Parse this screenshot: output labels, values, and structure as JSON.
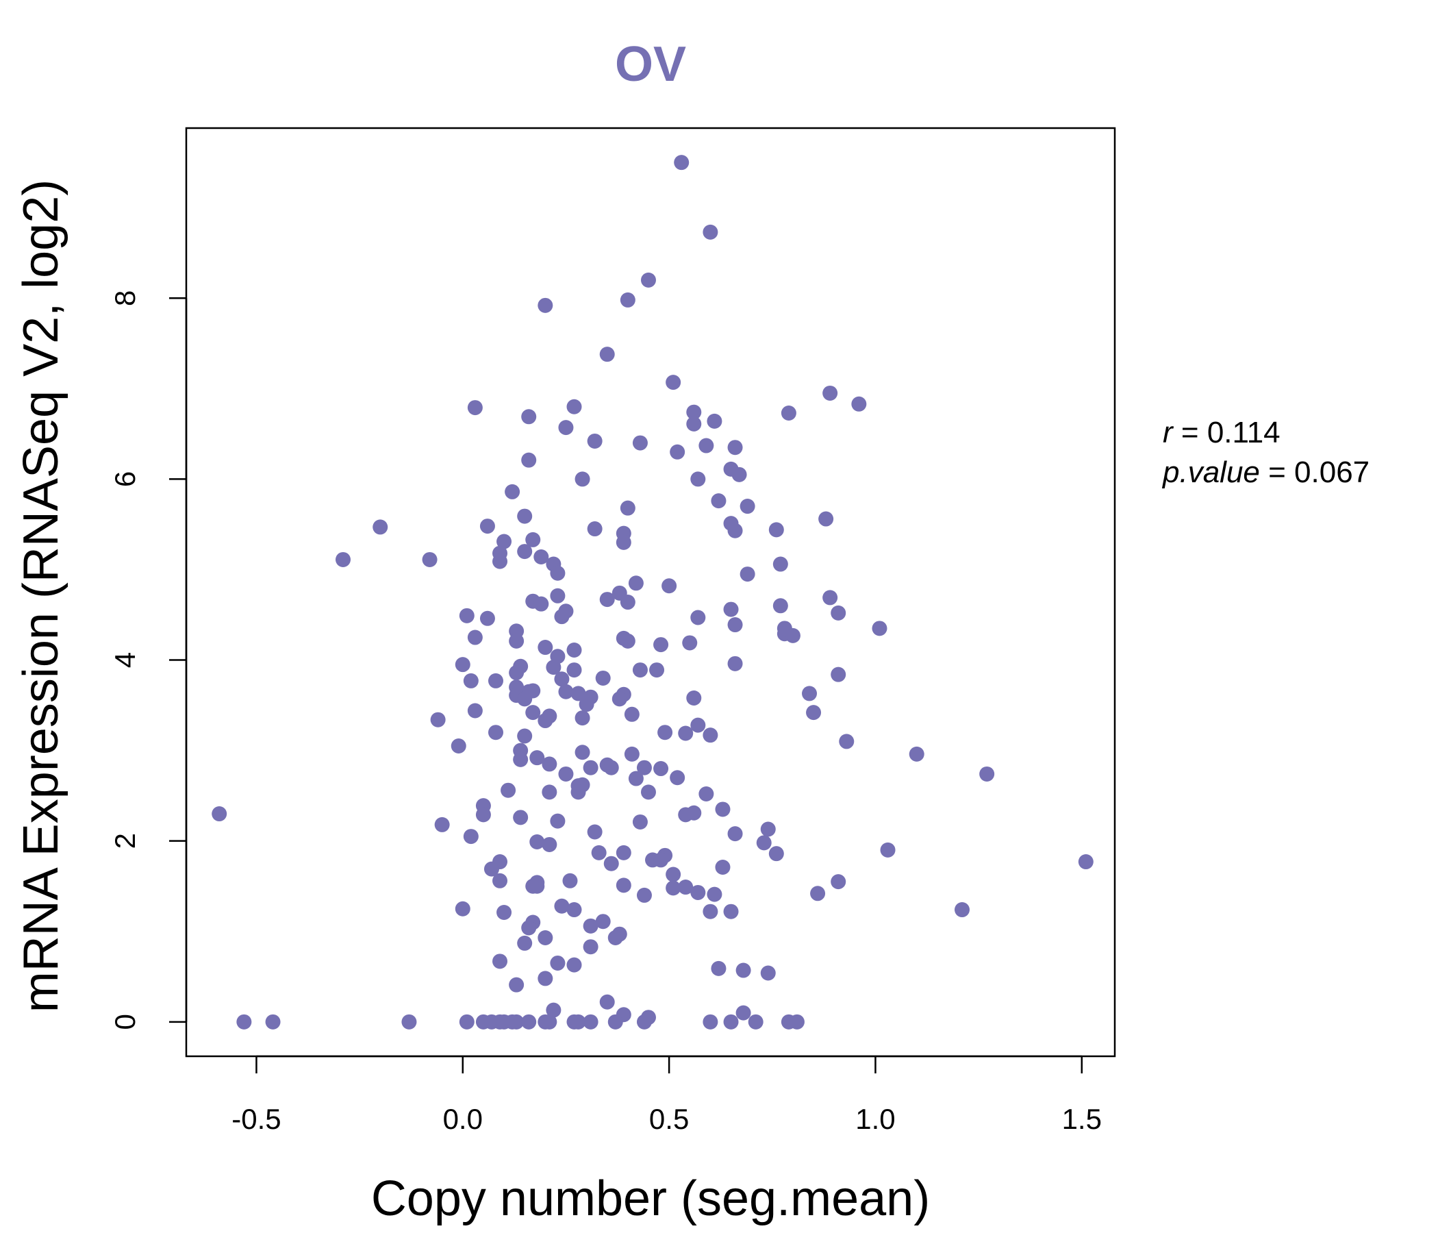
{
  "chart_data": {
    "type": "scatter",
    "title": "OV",
    "xlabel": "Copy number (seg.mean)",
    "ylabel": "mRNA Expression (RNASeq V2, log2)",
    "xlim": [
      -0.67,
      1.58
    ],
    "ylim": [
      -0.38,
      9.88
    ],
    "x_ticks": [
      -0.5,
      0.0,
      0.5,
      1.0,
      1.5
    ],
    "x_tick_labels": [
      "-0.5",
      "0.0",
      "0.5",
      "1.0",
      "1.5"
    ],
    "y_ticks": [
      0,
      2,
      4,
      6,
      8
    ],
    "y_tick_labels": [
      "0",
      "2",
      "4",
      "6",
      "8"
    ],
    "grid": false,
    "colors": {
      "points": "#7570b3",
      "title": "#7570b3",
      "axes": "#000000"
    },
    "annotation": {
      "r_label": "r",
      "r_value": "0.114",
      "p_label": "p.value",
      "p_value": "0.067"
    },
    "points": [
      {
        "x": 0.53,
        "y": 9.5
      },
      {
        "x": 0.6,
        "y": 8.73
      },
      {
        "x": 0.45,
        "y": 8.2
      },
      {
        "x": 0.2,
        "y": 7.92
      },
      {
        "x": 0.4,
        "y": 7.98
      },
      {
        "x": 0.35,
        "y": 7.38
      },
      {
        "x": 0.51,
        "y": 7.07
      },
      {
        "x": 0.89,
        "y": 6.95
      },
      {
        "x": 0.96,
        "y": 6.83
      },
      {
        "x": 0.03,
        "y": 6.79
      },
      {
        "x": 0.27,
        "y": 6.8
      },
      {
        "x": 0.56,
        "y": 6.74
      },
      {
        "x": 0.79,
        "y": 6.73
      },
      {
        "x": 0.16,
        "y": 6.69
      },
      {
        "x": 0.61,
        "y": 6.64
      },
      {
        "x": 0.56,
        "y": 6.61
      },
      {
        "x": 0.25,
        "y": 6.57
      },
      {
        "x": 0.32,
        "y": 6.42
      },
      {
        "x": 0.43,
        "y": 6.4
      },
      {
        "x": 0.59,
        "y": 6.37
      },
      {
        "x": 0.66,
        "y": 6.35
      },
      {
        "x": 0.52,
        "y": 6.3
      },
      {
        "x": 0.16,
        "y": 6.21
      },
      {
        "x": 0.65,
        "y": 6.11
      },
      {
        "x": 0.67,
        "y": 6.05
      },
      {
        "x": 0.29,
        "y": 6.0
      },
      {
        "x": 0.57,
        "y": 6.0
      },
      {
        "x": 0.12,
        "y": 5.86
      },
      {
        "x": 0.62,
        "y": 5.76
      },
      {
        "x": 0.69,
        "y": 5.7
      },
      {
        "x": 0.4,
        "y": 5.68
      },
      {
        "x": 0.15,
        "y": 5.59
      },
      {
        "x": 0.88,
        "y": 5.56
      },
      {
        "x": 0.65,
        "y": 5.51
      },
      {
        "x": -0.2,
        "y": 5.47
      },
      {
        "x": 0.06,
        "y": 5.48
      },
      {
        "x": 0.32,
        "y": 5.45
      },
      {
        "x": 0.76,
        "y": 5.44
      },
      {
        "x": 0.66,
        "y": 5.43
      },
      {
        "x": 0.39,
        "y": 5.4
      },
      {
        "x": 0.17,
        "y": 5.33
      },
      {
        "x": 0.1,
        "y": 5.31
      },
      {
        "x": 0.39,
        "y": 5.3
      },
      {
        "x": 0.15,
        "y": 5.2
      },
      {
        "x": 0.09,
        "y": 5.18
      },
      {
        "x": 0.19,
        "y": 5.14
      },
      {
        "x": -0.29,
        "y": 5.11
      },
      {
        "x": -0.08,
        "y": 5.11
      },
      {
        "x": 0.09,
        "y": 5.09
      },
      {
        "x": 0.22,
        "y": 5.06
      },
      {
        "x": 0.77,
        "y": 5.06
      },
      {
        "x": 0.23,
        "y": 4.96
      },
      {
        "x": 0.69,
        "y": 4.95
      },
      {
        "x": 0.42,
        "y": 4.85
      },
      {
        "x": 0.5,
        "y": 4.82
      },
      {
        "x": 0.38,
        "y": 4.74
      },
      {
        "x": 0.23,
        "y": 4.71
      },
      {
        "x": 0.89,
        "y": 4.69
      },
      {
        "x": 0.35,
        "y": 4.67
      },
      {
        "x": 0.17,
        "y": 4.65
      },
      {
        "x": 0.4,
        "y": 4.64
      },
      {
        "x": 0.19,
        "y": 4.62
      },
      {
        "x": 0.77,
        "y": 4.6
      },
      {
        "x": 0.25,
        "y": 4.54
      },
      {
        "x": 0.65,
        "y": 4.56
      },
      {
        "x": 0.91,
        "y": 4.52
      },
      {
        "x": 0.01,
        "y": 4.49
      },
      {
        "x": 0.24,
        "y": 4.48
      },
      {
        "x": 0.57,
        "y": 4.47
      },
      {
        "x": 0.06,
        "y": 4.46
      },
      {
        "x": 0.66,
        "y": 4.39
      },
      {
        "x": 0.78,
        "y": 4.35
      },
      {
        "x": 1.01,
        "y": 4.35
      },
      {
        "x": 0.13,
        "y": 4.32
      },
      {
        "x": 0.78,
        "y": 4.29
      },
      {
        "x": 0.8,
        "y": 4.27
      },
      {
        "x": 0.03,
        "y": 4.25
      },
      {
        "x": 0.39,
        "y": 4.24
      },
      {
        "x": 0.4,
        "y": 4.21
      },
      {
        "x": 0.13,
        "y": 4.21
      },
      {
        "x": 0.55,
        "y": 4.19
      },
      {
        "x": 0.48,
        "y": 4.17
      },
      {
        "x": 0.2,
        "y": 4.14
      },
      {
        "x": 0.27,
        "y": 4.11
      },
      {
        "x": 0.23,
        "y": 4.04
      },
      {
        "x": 0.0,
        "y": 3.95
      },
      {
        "x": 0.66,
        "y": 3.96
      },
      {
        "x": 0.14,
        "y": 3.93
      },
      {
        "x": 0.22,
        "y": 3.92
      },
      {
        "x": 0.43,
        "y": 3.89
      },
      {
        "x": 0.47,
        "y": 3.89
      },
      {
        "x": 0.27,
        "y": 3.89
      },
      {
        "x": 0.13,
        "y": 3.86
      },
      {
        "x": 0.91,
        "y": 3.84
      },
      {
        "x": 0.34,
        "y": 3.8
      },
      {
        "x": 0.02,
        "y": 3.77
      },
      {
        "x": 0.08,
        "y": 3.77
      },
      {
        "x": 0.24,
        "y": 3.79
      },
      {
        "x": 0.13,
        "y": 3.7
      },
      {
        "x": 0.17,
        "y": 3.66
      },
      {
        "x": 0.16,
        "y": 3.65
      },
      {
        "x": 0.25,
        "y": 3.65
      },
      {
        "x": 0.28,
        "y": 3.63
      },
      {
        "x": 0.84,
        "y": 3.63
      },
      {
        "x": 0.39,
        "y": 3.62
      },
      {
        "x": 0.13,
        "y": 3.61
      },
      {
        "x": 0.31,
        "y": 3.59
      },
      {
        "x": 0.38,
        "y": 3.57
      },
      {
        "x": 0.15,
        "y": 3.57
      },
      {
        "x": 0.56,
        "y": 3.58
      },
      {
        "x": 0.3,
        "y": 3.51
      },
      {
        "x": 0.03,
        "y": 3.44
      },
      {
        "x": 0.17,
        "y": 3.42
      },
      {
        "x": 0.85,
        "y": 3.42
      },
      {
        "x": 0.41,
        "y": 3.4
      },
      {
        "x": 0.21,
        "y": 3.38
      },
      {
        "x": 0.29,
        "y": 3.36
      },
      {
        "x": -0.06,
        "y": 3.34
      },
      {
        "x": 0.2,
        "y": 3.33
      },
      {
        "x": 0.57,
        "y": 3.28
      },
      {
        "x": 0.08,
        "y": 3.2
      },
      {
        "x": 0.49,
        "y": 3.2
      },
      {
        "x": 0.54,
        "y": 3.19
      },
      {
        "x": 0.15,
        "y": 3.16
      },
      {
        "x": 0.6,
        "y": 3.17
      },
      {
        "x": 0.93,
        "y": 3.1
      },
      {
        "x": -0.01,
        "y": 3.05
      },
      {
        "x": 0.14,
        "y": 3.0
      },
      {
        "x": 0.29,
        "y": 2.98
      },
      {
        "x": 0.41,
        "y": 2.96
      },
      {
        "x": 1.1,
        "y": 2.96
      },
      {
        "x": 0.14,
        "y": 2.9
      },
      {
        "x": 0.18,
        "y": 2.92
      },
      {
        "x": 0.21,
        "y": 2.85
      },
      {
        "x": 0.35,
        "y": 2.84
      },
      {
        "x": 0.36,
        "y": 2.81
      },
      {
        "x": 0.31,
        "y": 2.81
      },
      {
        "x": 0.44,
        "y": 2.81
      },
      {
        "x": 0.48,
        "y": 2.8
      },
      {
        "x": 1.27,
        "y": 2.74
      },
      {
        "x": 0.25,
        "y": 2.74
      },
      {
        "x": 0.52,
        "y": 2.7
      },
      {
        "x": 0.42,
        "y": 2.69
      },
      {
        "x": 0.28,
        "y": 2.61
      },
      {
        "x": 0.29,
        "y": 2.62
      },
      {
        "x": 0.28,
        "y": 2.54
      },
      {
        "x": 0.11,
        "y": 2.56
      },
      {
        "x": 0.21,
        "y": 2.54
      },
      {
        "x": 0.45,
        "y": 2.54
      },
      {
        "x": 0.59,
        "y": 2.52
      },
      {
        "x": 0.05,
        "y": 2.39
      },
      {
        "x": 0.63,
        "y": 2.35
      },
      {
        "x": 0.56,
        "y": 2.31
      },
      {
        "x": 0.54,
        "y": 2.29
      },
      {
        "x": 0.05,
        "y": 2.29
      },
      {
        "x": -0.59,
        "y": 2.3
      },
      {
        "x": 0.14,
        "y": 2.26
      },
      {
        "x": 0.23,
        "y": 2.22
      },
      {
        "x": 0.43,
        "y": 2.21
      },
      {
        "x": -0.05,
        "y": 2.18
      },
      {
        "x": 0.74,
        "y": 2.13
      },
      {
        "x": 0.32,
        "y": 2.1
      },
      {
        "x": 0.66,
        "y": 2.08
      },
      {
        "x": 0.02,
        "y": 2.05
      },
      {
        "x": 0.18,
        "y": 1.99
      },
      {
        "x": 0.73,
        "y": 1.98
      },
      {
        "x": 0.21,
        "y": 1.96
      },
      {
        "x": 1.03,
        "y": 1.9
      },
      {
        "x": 0.39,
        "y": 1.87
      },
      {
        "x": 0.33,
        "y": 1.87
      },
      {
        "x": 0.76,
        "y": 1.86
      },
      {
        "x": 0.49,
        "y": 1.84
      },
      {
        "x": 0.46,
        "y": 1.79
      },
      {
        "x": 0.48,
        "y": 1.79
      },
      {
        "x": 1.51,
        "y": 1.77
      },
      {
        "x": 0.09,
        "y": 1.77
      },
      {
        "x": 0.36,
        "y": 1.75
      },
      {
        "x": 0.63,
        "y": 1.71
      },
      {
        "x": 0.07,
        "y": 1.69
      },
      {
        "x": 0.51,
        "y": 1.63
      },
      {
        "x": 0.26,
        "y": 1.56
      },
      {
        "x": 0.09,
        "y": 1.56
      },
      {
        "x": 0.91,
        "y": 1.55
      },
      {
        "x": 0.18,
        "y": 1.54
      },
      {
        "x": 0.17,
        "y": 1.5
      },
      {
        "x": 0.18,
        "y": 1.5
      },
      {
        "x": 0.39,
        "y": 1.51
      },
      {
        "x": 0.54,
        "y": 1.49
      },
      {
        "x": 0.51,
        "y": 1.48
      },
      {
        "x": 0.57,
        "y": 1.43
      },
      {
        "x": 0.86,
        "y": 1.42
      },
      {
        "x": 0.61,
        "y": 1.41
      },
      {
        "x": 0.44,
        "y": 1.4
      },
      {
        "x": 0.24,
        "y": 1.28
      },
      {
        "x": 0.0,
        "y": 1.25
      },
      {
        "x": 0.27,
        "y": 1.24
      },
      {
        "x": 1.21,
        "y": 1.24
      },
      {
        "x": 0.6,
        "y": 1.22
      },
      {
        "x": 0.65,
        "y": 1.22
      },
      {
        "x": 0.1,
        "y": 1.21
      },
      {
        "x": 0.34,
        "y": 1.11
      },
      {
        "x": 0.17,
        "y": 1.1
      },
      {
        "x": 0.31,
        "y": 1.06
      },
      {
        "x": 0.16,
        "y": 1.04
      },
      {
        "x": 0.38,
        "y": 0.97
      },
      {
        "x": 0.37,
        "y": 0.93
      },
      {
        "x": 0.2,
        "y": 0.93
      },
      {
        "x": 0.15,
        "y": 0.87
      },
      {
        "x": 0.31,
        "y": 0.83
      },
      {
        "x": 0.09,
        "y": 0.67
      },
      {
        "x": 0.23,
        "y": 0.65
      },
      {
        "x": 0.27,
        "y": 0.63
      },
      {
        "x": 0.62,
        "y": 0.59
      },
      {
        "x": 0.68,
        "y": 0.57
      },
      {
        "x": 0.74,
        "y": 0.54
      },
      {
        "x": 0.2,
        "y": 0.48
      },
      {
        "x": 0.13,
        "y": 0.41
      },
      {
        "x": 0.35,
        "y": 0.22
      },
      {
        "x": 0.22,
        "y": 0.13
      },
      {
        "x": 0.68,
        "y": 0.1
      },
      {
        "x": 0.39,
        "y": 0.08
      },
      {
        "x": 0.45,
        "y": 0.05
      },
      {
        "x": -0.53,
        "y": 0.0
      },
      {
        "x": -0.46,
        "y": 0.0
      },
      {
        "x": -0.13,
        "y": 0.0
      },
      {
        "x": 0.01,
        "y": 0.0
      },
      {
        "x": 0.05,
        "y": 0.0
      },
      {
        "x": 0.07,
        "y": 0.0
      },
      {
        "x": 0.09,
        "y": 0.0
      },
      {
        "x": 0.1,
        "y": 0.0
      },
      {
        "x": 0.12,
        "y": 0.0
      },
      {
        "x": 0.13,
        "y": 0.0
      },
      {
        "x": 0.16,
        "y": 0.0
      },
      {
        "x": 0.2,
        "y": 0.0
      },
      {
        "x": 0.21,
        "y": 0.0
      },
      {
        "x": 0.27,
        "y": 0.0
      },
      {
        "x": 0.28,
        "y": 0.0
      },
      {
        "x": 0.31,
        "y": 0.0
      },
      {
        "x": 0.37,
        "y": 0.0
      },
      {
        "x": 0.44,
        "y": 0.0
      },
      {
        "x": 0.6,
        "y": 0.0
      },
      {
        "x": 0.65,
        "y": 0.0
      },
      {
        "x": 0.71,
        "y": 0.0
      },
      {
        "x": 0.79,
        "y": 0.0
      },
      {
        "x": 0.81,
        "y": 0.0
      }
    ]
  }
}
